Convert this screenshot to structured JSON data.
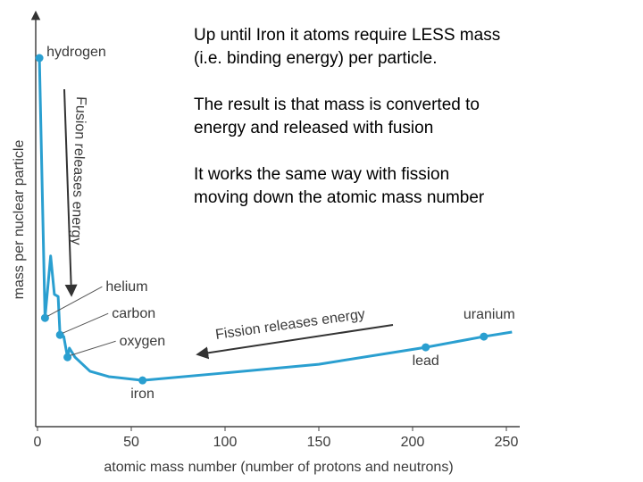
{
  "chart_data": {
    "type": "line",
    "color": "#2a9fd0",
    "xlabel": "atomic mass number (number of protons and neutrons)",
    "ylabel": "mass per nuclear particle",
    "x": [
      1,
      4,
      7,
      9,
      11,
      12,
      14,
      16,
      17,
      20,
      28,
      38,
      56,
      100,
      150,
      207,
      238,
      253
    ],
    "values": [
      89.2,
      26.3,
      41.3,
      32.0,
      31.5,
      22.2,
      21.8,
      16.8,
      19.0,
      16.8,
      13.4,
      12.1,
      11.2,
      13.0,
      15.1,
      19.2,
      21.8,
      22.9
    ],
    "point_labels": [
      "hydrogen",
      "helium",
      null,
      null,
      null,
      "carbon",
      null,
      "oxygen",
      null,
      null,
      null,
      null,
      "iron",
      null,
      null,
      "lead",
      "uranium",
      null
    ],
    "xlim": [
      0,
      255
    ],
    "xticks": [
      0,
      50,
      100,
      150,
      200,
      250
    ],
    "ylim": [
      0,
      100
    ],
    "annotations": [
      "Fusion releases energy",
      "Fission releases energy"
    ],
    "text_box": [
      [
        "Up until Iron it atoms require LESS mass",
        "(i.e. binding energy) per particle."
      ],
      [
        "The result is that mass is converted to",
        "energy and released with fusion"
      ],
      [
        "It works the same way with fission",
        "moving down the atomic mass number"
      ]
    ]
  }
}
